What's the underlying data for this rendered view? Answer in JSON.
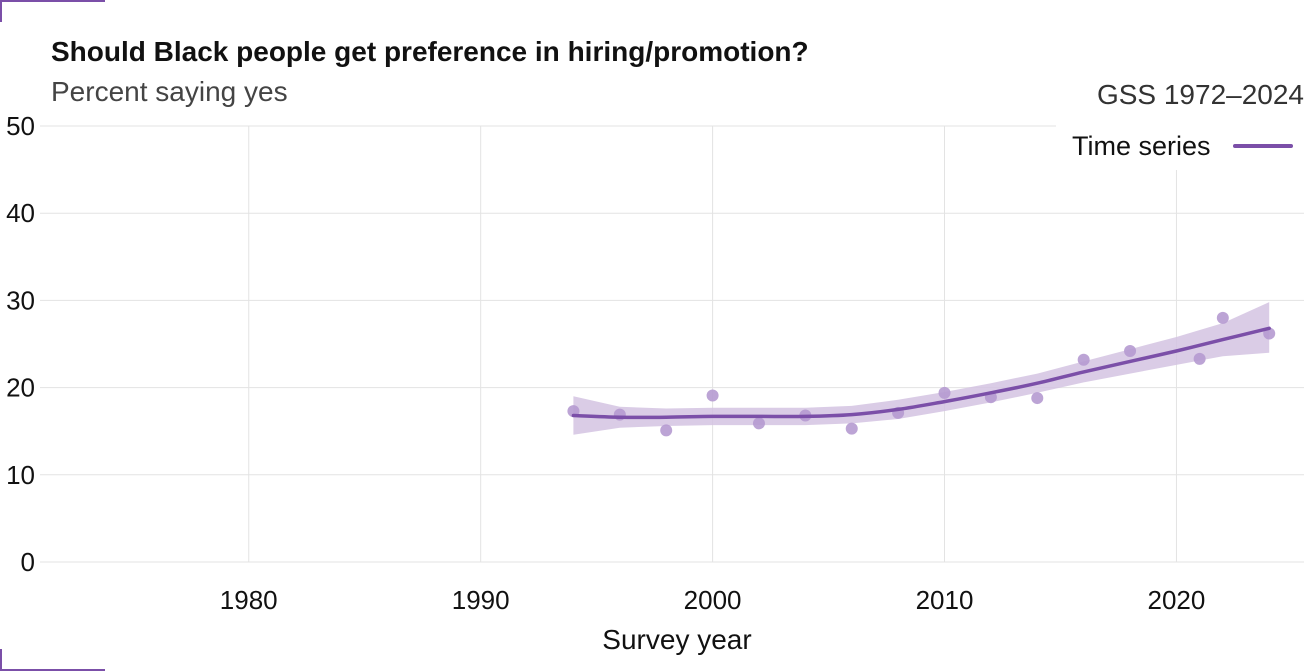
{
  "colors": {
    "series": "#7b4fa8",
    "ribbon": "#d4c3e2",
    "points": "#b59ad0",
    "grid": "#e3e3e3"
  },
  "chart_data": {
    "type": "line",
    "title": "Should Black people get preference in hiring/promotion?",
    "subtitle": "Percent saying yes",
    "source_label": "GSS 1972–2024",
    "xlabel": "Survey year",
    "ylabel": "",
    "xlim": [
      1971,
      2025.5
    ],
    "ylim": [
      0,
      50
    ],
    "x_ticks": [
      1980,
      1990,
      2000,
      2010,
      2020
    ],
    "y_ticks": [
      0,
      10,
      20,
      30,
      40,
      50
    ],
    "grid": true,
    "legend_position": "top-right",
    "series": [
      {
        "name": "Time series",
        "kind": "points",
        "x": [
          1994,
          1996,
          1998,
          2000,
          2002,
          2004,
          2006,
          2008,
          2010,
          2012,
          2014,
          2016,
          2018,
          2021,
          2022,
          2024
        ],
        "values": [
          17.3,
          16.9,
          15.1,
          19.1,
          15.9,
          16.8,
          15.3,
          17.1,
          19.4,
          18.9,
          18.8,
          23.2,
          24.2,
          23.3,
          28.0,
          26.2
        ]
      },
      {
        "name": "Time series",
        "kind": "smooth",
        "x": [
          1994,
          1996,
          1998,
          2000,
          2002,
          2004,
          2006,
          2008,
          2010,
          2012,
          2014,
          2016,
          2018,
          2020,
          2022,
          2024
        ],
        "values": [
          16.8,
          16.6,
          16.6,
          16.7,
          16.7,
          16.7,
          16.9,
          17.5,
          18.4,
          19.4,
          20.5,
          21.8,
          23.0,
          24.2,
          25.5,
          26.8
        ],
        "lower": [
          14.6,
          15.4,
          15.6,
          15.7,
          15.7,
          15.7,
          15.9,
          16.4,
          17.3,
          18.3,
          19.4,
          20.6,
          21.6,
          22.6,
          23.6,
          24.0
        ],
        "upper": [
          19.0,
          17.8,
          17.6,
          17.7,
          17.7,
          17.7,
          17.9,
          18.6,
          19.5,
          20.5,
          21.6,
          23.0,
          24.4,
          25.8,
          27.4,
          29.8
        ]
      }
    ]
  }
}
